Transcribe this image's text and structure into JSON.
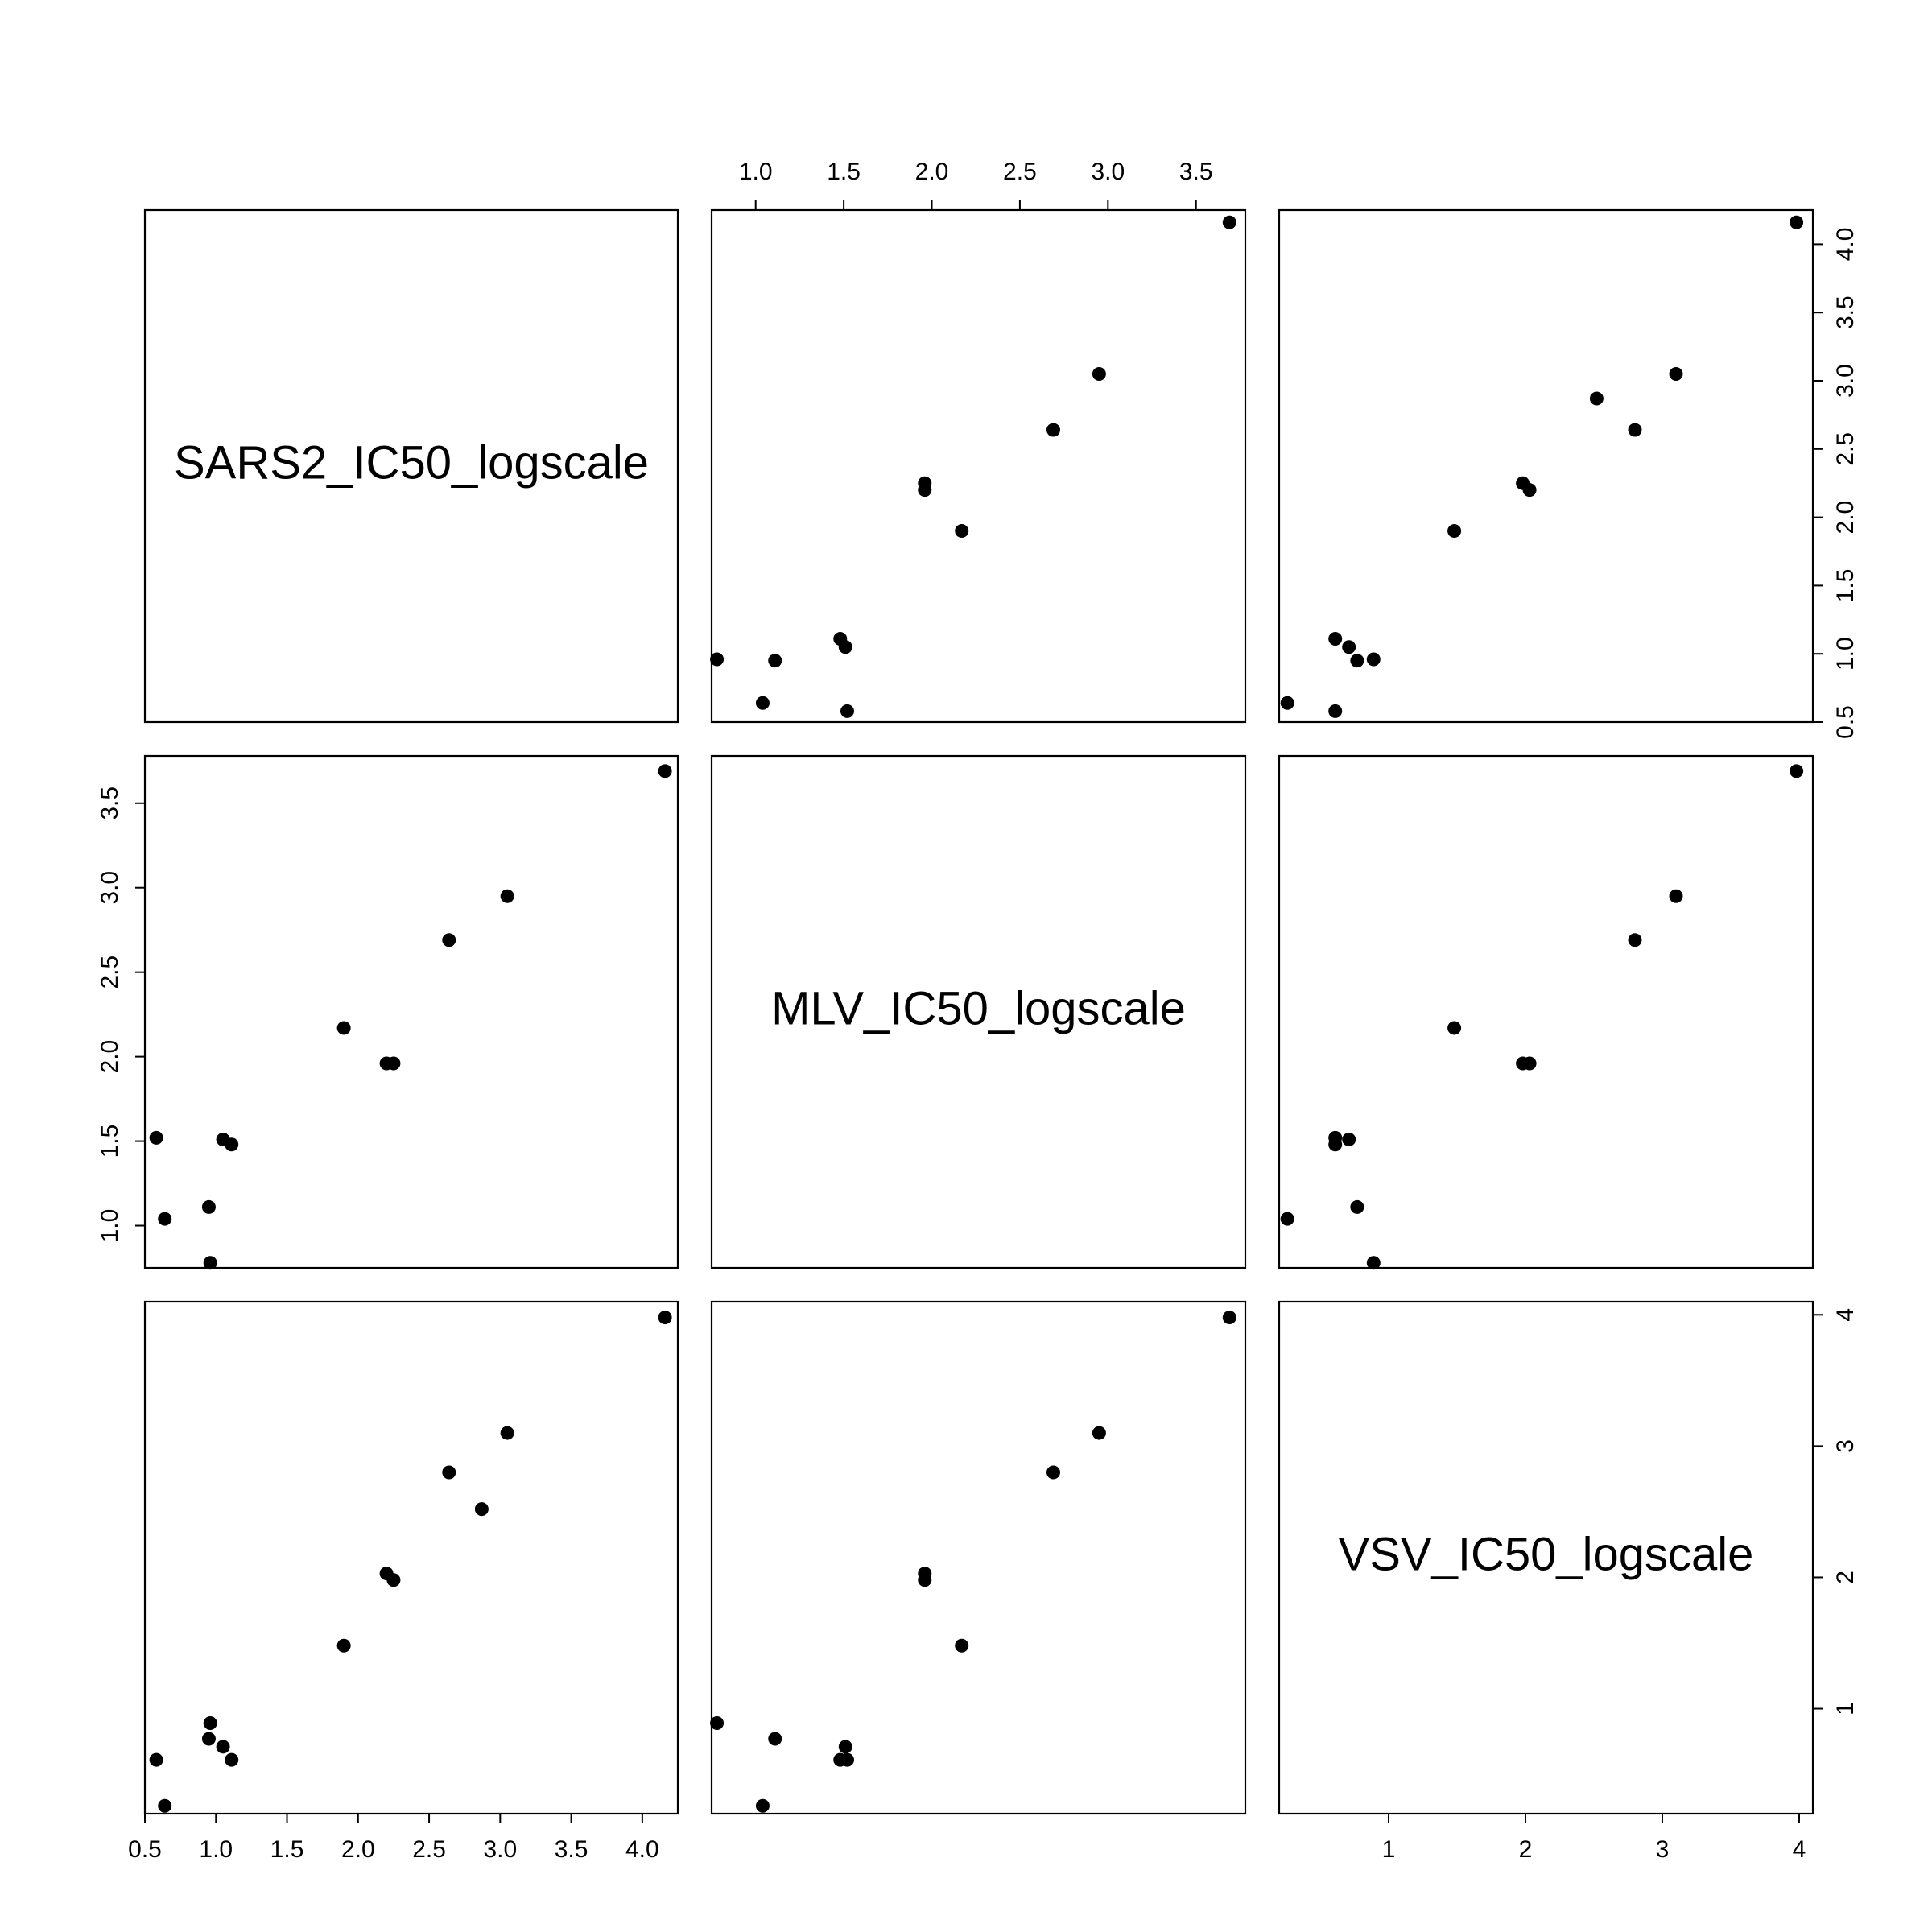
{
  "chart_data": {
    "type": "scatter",
    "title": "",
    "variables": [
      "SARS2_IC50_logscale",
      "MLV_IC50_logscale",
      "VSV_IC50_logscale"
    ],
    "axes": {
      "SARS2_IC50_logscale": {
        "range": [
          0.5,
          4.25
        ],
        "ticks": [
          "0.5",
          "1.0",
          "1.5",
          "2.0",
          "2.5",
          "3.0",
          "3.5",
          "4.0"
        ]
      },
      "MLV_IC50_logscale": {
        "range": [
          0.75,
          3.78
        ],
        "ticks": [
          "1.0",
          "1.5",
          "2.0",
          "2.5",
          "3.0",
          "3.5"
        ]
      },
      "VSV_IC50_logscale": {
        "range": [
          0.2,
          4.1
        ],
        "ticks": [
          "1",
          "2",
          "3",
          "4"
        ]
      }
    },
    "points": [
      {
        "SARS2_IC50_logscale": 0.64,
        "MLV_IC50_logscale": 1.04,
        "VSV_IC50_logscale": 0.26
      },
      {
        "SARS2_IC50_logscale": 0.58,
        "MLV_IC50_logscale": 1.52,
        "VSV_IC50_logscale": 0.61
      },
      {
        "SARS2_IC50_logscale": 0.96,
        "MLV_IC50_logscale": 0.78,
        "VSV_IC50_logscale": 0.89
      },
      {
        "SARS2_IC50_logscale": 0.95,
        "MLV_IC50_logscale": 1.11,
        "VSV_IC50_logscale": 0.77
      },
      {
        "SARS2_IC50_logscale": 1.05,
        "MLV_IC50_logscale": 1.51,
        "VSV_IC50_logscale": 0.71
      },
      {
        "SARS2_IC50_logscale": 1.11,
        "MLV_IC50_logscale": 1.48,
        "VSV_IC50_logscale": 0.61
      },
      {
        "SARS2_IC50_logscale": 1.9,
        "MLV_IC50_logscale": 2.17,
        "VSV_IC50_logscale": 1.48
      },
      {
        "SARS2_IC50_logscale": 2.2,
        "MLV_IC50_logscale": 1.96,
        "VSV_IC50_logscale": 2.03
      },
      {
        "SARS2_IC50_logscale": 2.25,
        "MLV_IC50_logscale": 1.96,
        "VSV_IC50_logscale": 1.98
      },
      {
        "SARS2_IC50_logscale": 2.64,
        "MLV_IC50_logscale": 2.69,
        "VSV_IC50_logscale": 2.8
      },
      {
        "SARS2_IC50_logscale": 2.87,
        "MLV_IC50_logscale": null,
        "VSV_IC50_logscale": 2.52
      },
      {
        "SARS2_IC50_logscale": 3.05,
        "MLV_IC50_logscale": 2.95,
        "VSV_IC50_logscale": 3.1
      },
      {
        "SARS2_IC50_logscale": 4.16,
        "MLV_IC50_logscale": 3.69,
        "VSV_IC50_logscale": 3.98
      }
    ],
    "grid": false,
    "legend": "none"
  }
}
